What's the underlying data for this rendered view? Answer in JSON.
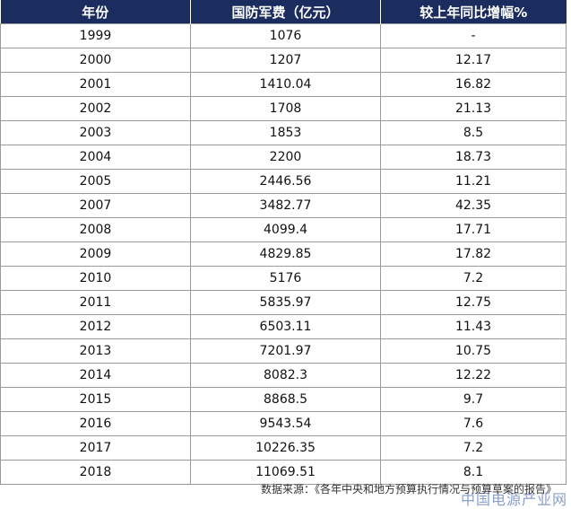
{
  "table": {
    "headers": [
      "年份",
      "国防军费（亿元）",
      "较上年同比增幅%"
    ],
    "rows": [
      [
        "1999",
        "1076",
        "-"
      ],
      [
        "2000",
        "1207",
        "12.17"
      ],
      [
        "2001",
        "1410.04",
        "16.82"
      ],
      [
        "2002",
        "1708",
        "21.13"
      ],
      [
        "2003",
        "1853",
        "8.5"
      ],
      [
        "2004",
        "2200",
        "18.73"
      ],
      [
        "2005",
        "2446.56",
        "11.21"
      ],
      [
        "2007",
        "3482.77",
        "42.35"
      ],
      [
        "2008",
        "4099.4",
        "17.71"
      ],
      [
        "2009",
        "4829.85",
        "17.82"
      ],
      [
        "2010",
        "5176",
        "7.2"
      ],
      [
        "2011",
        "5835.97",
        "12.75"
      ],
      [
        "2012",
        "6503.11",
        "11.43"
      ],
      [
        "2013",
        "7201.97",
        "10.75"
      ],
      [
        "2014",
        "8082.3",
        "12.22"
      ],
      [
        "2015",
        "8868.5",
        "9.7"
      ],
      [
        "2016",
        "9543.54",
        "7.6"
      ],
      [
        "2017",
        "10226.35",
        "7.2"
      ],
      [
        "2018",
        "11069.51",
        "8.1"
      ]
    ]
  },
  "footer": {
    "source": "数据来源：《各年中央和地方预算执行情况与预算草案的报告》"
  },
  "watermark": {
    "text": "中国电源产业网"
  },
  "colors": {
    "header_bg": "#1b2c5e",
    "header_text": "#ffffff",
    "border": "#9a9a9a"
  }
}
